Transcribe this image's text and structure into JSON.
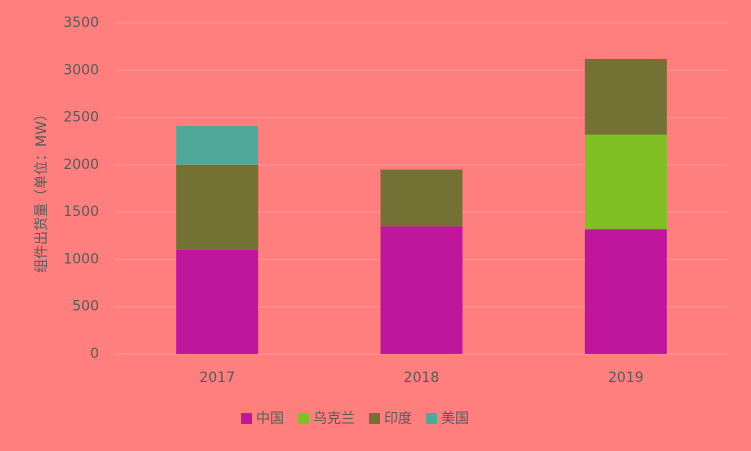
{
  "chart_data": {
    "type": "stacked-bar",
    "y_label": "组件出货量（单位：MW）",
    "categories": [
      "2017",
      "2018",
      "2019"
    ],
    "series": [
      {
        "name": "中国",
        "color": "#c0169e",
        "values": [
          1100,
          1350,
          1320
        ]
      },
      {
        "name": "乌克兰",
        "color": "#80c025",
        "values": [
          0,
          0,
          1000
        ]
      },
      {
        "name": "印度",
        "color": "#737133",
        "values": [
          900,
          600,
          800
        ]
      },
      {
        "name": "美国",
        "color": "#4fa89a",
        "values": [
          410,
          0,
          0
        ]
      }
    ],
    "ylim": [
      0,
      3500
    ],
    "yticks": [
      0,
      500,
      1000,
      1500,
      2000,
      2500,
      3000,
      3500
    ],
    "grid": true,
    "legend": "bottom"
  }
}
